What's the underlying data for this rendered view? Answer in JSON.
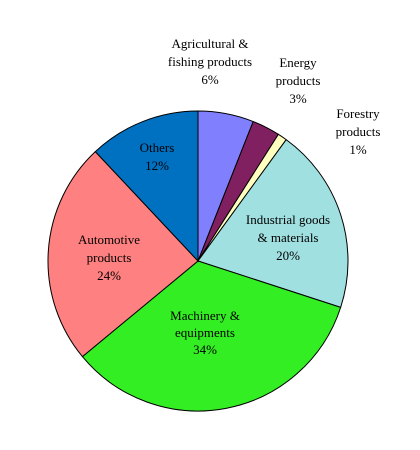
{
  "chart_data": {
    "type": "pie",
    "title": "",
    "start_angle_deg": 0,
    "direction": "clockwise",
    "slices": [
      {
        "key": "agri",
        "label_lines": [
          "Agricultural &",
          "fishing products"
        ],
        "pct_label": "6%",
        "value": 6,
        "color": "#8080ff"
      },
      {
        "key": "energy",
        "label_lines": [
          "Energy",
          "products"
        ],
        "pct_label": "3%",
        "value": 3,
        "color": "#802060"
      },
      {
        "key": "forest",
        "label_lines": [
          "Forestry",
          "products"
        ],
        "pct_label": "1%",
        "value": 1,
        "color": "#ffffc0"
      },
      {
        "key": "indus",
        "label_lines": [
          "Industrial goods",
          "& materials"
        ],
        "pct_label": "20%",
        "value": 20,
        "color": "#a0e0e0"
      },
      {
        "key": "mach",
        "label_lines": [
          "Machinery &",
          "equipments"
        ],
        "pct_label": "34%",
        "value": 34,
        "color": "#33ee22"
      },
      {
        "key": "auto",
        "label_lines": [
          "Automotive",
          "products"
        ],
        "pct_label": "24%",
        "value": 24,
        "color": "#ff8080"
      },
      {
        "key": "other",
        "label_lines": [
          "Others"
        ],
        "pct_label": "12%",
        "value": 12,
        "color": "#0070c0"
      }
    ]
  }
}
